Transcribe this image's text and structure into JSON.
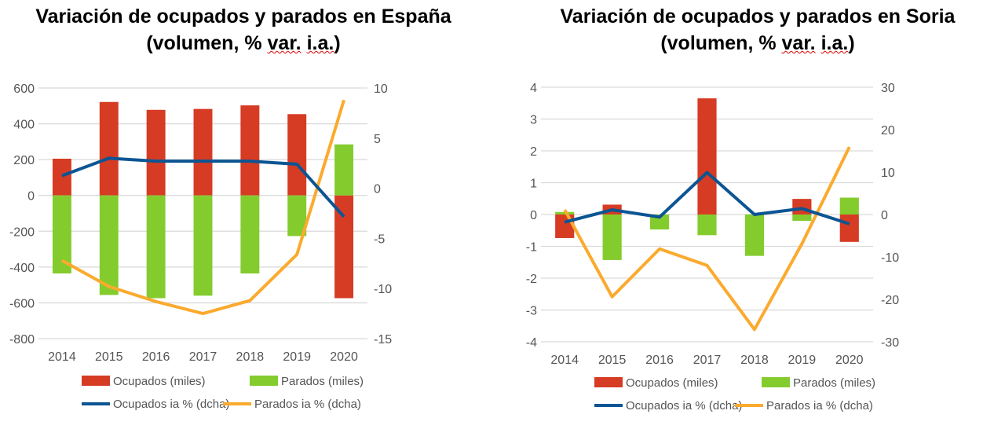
{
  "colors": {
    "ocupados_bar": "#d63b24",
    "parados_bar": "#84cc2e",
    "ocupados_line": "#0c5593",
    "parados_line": "#fbaa2e",
    "grid": "#d9d9d9"
  },
  "chart_data": [
    {
      "type": "bar+line",
      "title_line1": "Variación de ocupados y parados en España",
      "title_line2_a": "(volumen, % ",
      "title_line2_b": "var.",
      "title_line2_c": " ",
      "title_line2_d": "i.a.",
      "title_line2_e": ")",
      "categories": [
        "2014",
        "2015",
        "2016",
        "2017",
        "2018",
        "2019",
        "2020"
      ],
      "ylim_left": [
        -800,
        600
      ],
      "yticks_left": [
        600,
        400,
        200,
        0,
        -200,
        -400,
        -600,
        -800
      ],
      "ylim_right": [
        -15,
        10
      ],
      "yticks_right": [
        10,
        5,
        0,
        -5,
        -10,
        -15
      ],
      "grid": true,
      "legend_placement": "bottom",
      "bars": [
        {
          "name": "Ocupados (miles)",
          "values": [
            205,
            522,
            478,
            483,
            503,
            454,
            -574
          ]
        },
        {
          "name": "Parados (miles)",
          "values": [
            -436,
            -556,
            -574,
            -560,
            -436,
            -227,
            285
          ]
        }
      ],
      "lines": [
        {
          "name": "Ocupados ia % (dcha)",
          "axis": "right",
          "values": [
            1.25,
            3.0,
            2.7,
            2.7,
            2.7,
            2.4,
            -2.85
          ]
        },
        {
          "name": "Parados ia % (dcha)",
          "axis": "right",
          "values": [
            -7.2,
            -9.8,
            -11.3,
            -12.5,
            -11.2,
            -6.6,
            8.8
          ]
        }
      ]
    },
    {
      "type": "bar+line",
      "title_line1": "Variación de ocupados y parados en Soria",
      "title_line2_a": "(volumen, % ",
      "title_line2_b": "var.",
      "title_line2_c": " ",
      "title_line2_d": "i.a.",
      "title_line2_e": ")",
      "categories": [
        "2014",
        "2015",
        "2016",
        "2017",
        "2018",
        "2019",
        "2020"
      ],
      "ylim_left": [
        -4,
        4
      ],
      "yticks_left": [
        4,
        3,
        2,
        1,
        0,
        -1,
        -2,
        -3,
        -4
      ],
      "ylim_right": [
        -30,
        30
      ],
      "yticks_right": [
        30,
        20,
        10,
        0,
        -10,
        -20,
        -30
      ],
      "grid": true,
      "legend_placement": "bottom",
      "bars": [
        {
          "name": "Ocupados (miles)",
          "values": [
            -0.74,
            0.31,
            -0.02,
            3.65,
            -0.02,
            0.49,
            -0.86
          ]
        },
        {
          "name": "Parados (miles)",
          "values": [
            0.08,
            -1.43,
            -0.47,
            -0.65,
            -1.3,
            -0.2,
            0.53
          ]
        }
      ],
      "lines": [
        {
          "name": "Ocupados ia % (dcha)",
          "axis": "right",
          "values": [
            -1.8,
            1.1,
            -0.6,
            9.9,
            0,
            1.4,
            -2.2
          ]
        },
        {
          "name": "Parados ia % (dcha)",
          "axis": "right",
          "values": [
            1.1,
            -19.4,
            -8.1,
            -12.0,
            -27.1,
            -6.9,
            15.9
          ]
        }
      ]
    }
  ]
}
